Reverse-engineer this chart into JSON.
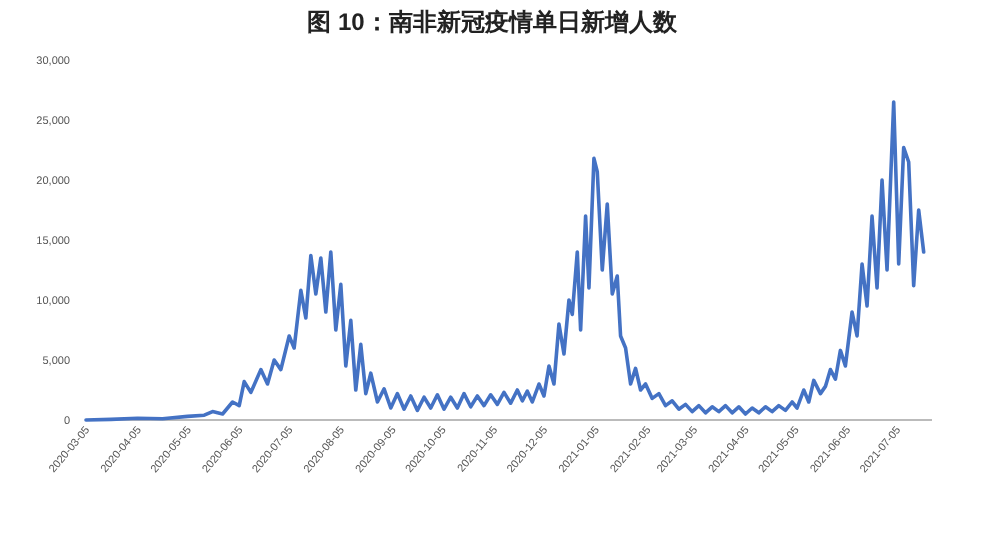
{
  "chart_data": {
    "type": "line",
    "title": "图 10：南非新冠疫情单日新增人数",
    "x": [
      "2020-03-05",
      "2020-03-20",
      "2020-04-05",
      "2020-04-20",
      "2020-05-05",
      "2020-05-15",
      "2020-05-20",
      "2020-05-26",
      "2020-06-01",
      "2020-06-05",
      "2020-06-08",
      "2020-06-12",
      "2020-06-18",
      "2020-06-22",
      "2020-06-26",
      "2020-06-30",
      "2020-07-05",
      "2020-07-08",
      "2020-07-12",
      "2020-07-15",
      "2020-07-18",
      "2020-07-21",
      "2020-07-24",
      "2020-07-27",
      "2020-07-30",
      "2020-08-02",
      "2020-08-05",
      "2020-08-08",
      "2020-08-11",
      "2020-08-14",
      "2020-08-17",
      "2020-08-20",
      "2020-08-23",
      "2020-08-27",
      "2020-08-31",
      "2020-09-04",
      "2020-09-08",
      "2020-09-12",
      "2020-09-16",
      "2020-09-20",
      "2020-09-24",
      "2020-09-28",
      "2020-10-02",
      "2020-10-06",
      "2020-10-10",
      "2020-10-14",
      "2020-10-18",
      "2020-10-22",
      "2020-10-26",
      "2020-10-30",
      "2020-11-03",
      "2020-11-07",
      "2020-11-11",
      "2020-11-15",
      "2020-11-19",
      "2020-11-22",
      "2020-11-25",
      "2020-11-28",
      "2020-12-02",
      "2020-12-05",
      "2020-12-08",
      "2020-12-11",
      "2020-12-14",
      "2020-12-17",
      "2020-12-20",
      "2020-12-22",
      "2020-12-25",
      "2020-12-27",
      "2020-12-30",
      "2021-01-01",
      "2021-01-04",
      "2021-01-06",
      "2021-01-09",
      "2021-01-12",
      "2021-01-15",
      "2021-01-18",
      "2021-01-20",
      "2021-01-23",
      "2021-01-26",
      "2021-01-29",
      "2021-02-01",
      "2021-02-04",
      "2021-02-08",
      "2021-02-12",
      "2021-02-16",
      "2021-02-20",
      "2021-02-24",
      "2021-02-28",
      "2021-03-04",
      "2021-03-08",
      "2021-03-12",
      "2021-03-16",
      "2021-03-20",
      "2021-03-24",
      "2021-03-28",
      "2021-04-01",
      "2021-04-05",
      "2021-04-09",
      "2021-04-13",
      "2021-04-17",
      "2021-04-21",
      "2021-04-25",
      "2021-04-29",
      "2021-05-03",
      "2021-05-06",
      "2021-05-10",
      "2021-05-13",
      "2021-05-16",
      "2021-05-20",
      "2021-05-23",
      "2021-05-26",
      "2021-05-29",
      "2021-06-01",
      "2021-06-04",
      "2021-06-08",
      "2021-06-11",
      "2021-06-14",
      "2021-06-17",
      "2021-06-20",
      "2021-06-23",
      "2021-06-26",
      "2021-06-29",
      "2021-07-03",
      "2021-07-06",
      "2021-07-09",
      "2021-07-12",
      "2021-07-15",
      "2021-07-18",
      "2021-07-21"
    ],
    "series": [
      {
        "color": "#4472c4",
        "values": [
          0,
          50,
          150,
          100,
          300,
          400,
          700,
          500,
          1500,
          1200,
          3200,
          2300,
          4200,
          3000,
          5000,
          4200,
          7000,
          6000,
          10800,
          8500,
          13700,
          10500,
          13500,
          9000,
          14000,
          7500,
          11300,
          4500,
          8300,
          2500,
          6300,
          2200,
          3900,
          1500,
          2600,
          1000,
          2200,
          900,
          2000,
          800,
          1900,
          1000,
          2100,
          900,
          1900,
          1000,
          2200,
          1100,
          2000,
          1200,
          2100,
          1300,
          2300,
          1400,
          2500,
          1600,
          2400,
          1500,
          3000,
          2000,
          4500,
          3000,
          8000,
          5500,
          10000,
          8800,
          14000,
          7500,
          17000,
          11000,
          21800,
          20700,
          12500,
          18000,
          10500,
          12000,
          7000,
          6000,
          3000,
          4300,
          2500,
          3000,
          1800,
          2200,
          1200,
          1600,
          900,
          1300,
          700,
          1200,
          600,
          1100,
          700,
          1200,
          600,
          1100,
          500,
          1000,
          600,
          1100,
          700,
          1200,
          800,
          1500,
          1000,
          2500,
          1500,
          3300,
          2200,
          2800,
          4200,
          3400,
          5800,
          4500,
          9000,
          7000,
          13000,
          9500,
          17000,
          11000,
          20000,
          12500,
          26500,
          13000,
          22700,
          21500,
          11200,
          17500,
          14000
        ]
      }
    ],
    "xlim": [
      "2020-03-05",
      "2021-07-26"
    ],
    "xticks": [
      "2020-03-05",
      "2020-04-05",
      "2020-05-05",
      "2020-06-05",
      "2020-07-05",
      "2020-08-05",
      "2020-09-05",
      "2020-10-05",
      "2020-11-05",
      "2020-12-05",
      "2021-01-05",
      "2021-02-05",
      "2021-03-05",
      "2021-04-05",
      "2021-05-05",
      "2021-06-05",
      "2021-07-05"
    ],
    "ylim": [
      0,
      30000
    ],
    "yticks": [
      0,
      {
        "value": 5000,
        "label": "5,000"
      },
      {
        "value": 10000,
        "label": "10,000"
      },
      {
        "value": 15000,
        "label": "15,000"
      },
      {
        "value": 20000,
        "label": "20,000"
      },
      {
        "value": 25000,
        "label": "25,000"
      },
      {
        "value": 30000,
        "label": "30,000"
      }
    ]
  }
}
